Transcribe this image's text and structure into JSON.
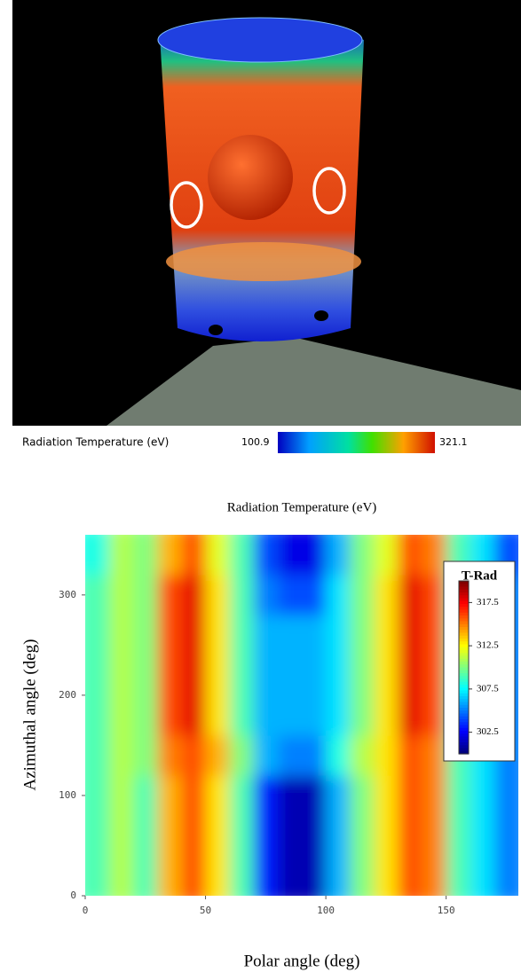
{
  "render": {
    "colorbar_label": "Radiation Temperature (eV)",
    "min": "100.9",
    "max": "321.1"
  },
  "chart_data": {
    "type": "heatmap",
    "title": "Radiation Temperature (eV)",
    "x_label": "Polar angle (deg)",
    "y_label": "Azimuthal angle (deg)",
    "x": [
      5,
      15,
      25,
      35,
      45,
      55,
      65,
      75,
      85,
      95,
      105,
      115,
      125,
      135,
      145,
      155,
      165,
      175
    ],
    "y": [
      20,
      60,
      100,
      140,
      180,
      220,
      260,
      300,
      340
    ],
    "values": [
      [
        309,
        311,
        309,
        314,
        316,
        313,
        309,
        303,
        301,
        301,
        306,
        310,
        313,
        316,
        315,
        309,
        307,
        305
      ],
      [
        309,
        311,
        309,
        314,
        316,
        313,
        309,
        303,
        301,
        301,
        306,
        310,
        313,
        316,
        315,
        309,
        307,
        305
      ],
      [
        309,
        311,
        309,
        314,
        316,
        313,
        309,
        303,
        301,
        301,
        306,
        310,
        313,
        316,
        315,
        309,
        307,
        305
      ],
      [
        309,
        311,
        310,
        315,
        316,
        314,
        310,
        306,
        305,
        305,
        308,
        311,
        313,
        316,
        315,
        309,
        307,
        305
      ],
      [
        309,
        311,
        310,
        316,
        318,
        313,
        309,
        306,
        306,
        306,
        307,
        310,
        313,
        318,
        316,
        309,
        307,
        305
      ],
      [
        309,
        311,
        310,
        316,
        318,
        313,
        309,
        306,
        306,
        306,
        307,
        310,
        313,
        318,
        316,
        309,
        307,
        305
      ],
      [
        309,
        311,
        310,
        316,
        318,
        313,
        309,
        306,
        306,
        306,
        307,
        310,
        313,
        318,
        316,
        309,
        307,
        305
      ],
      [
        309,
        311,
        310,
        316,
        318,
        313,
        309,
        305,
        304,
        304,
        307,
        310,
        313,
        318,
        316,
        309,
        307,
        305
      ],
      [
        308,
        311,
        310,
        314,
        316,
        312,
        309,
        304,
        302,
        302,
        306,
        310,
        312,
        316,
        315,
        309,
        307,
        304
      ]
    ],
    "xlim": [
      0,
      180
    ],
    "ylim": [
      0,
      360
    ],
    "xticks": [
      0,
      50,
      100,
      150
    ],
    "yticks": [
      0,
      100,
      200,
      300
    ],
    "colorbar": {
      "title": "T-Rad",
      "clim": [
        300,
        320
      ],
      "ticks": [
        302.5,
        307.5,
        312.5,
        317.5
      ]
    }
  }
}
